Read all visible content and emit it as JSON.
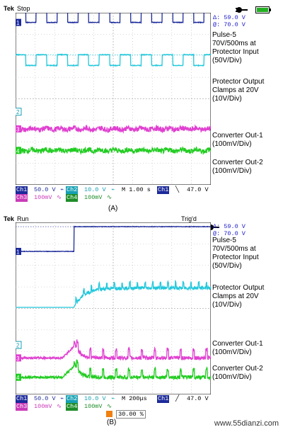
{
  "colors": {
    "ch1": "#1c2a9a",
    "ch2": "#22c8dc",
    "ch3": "#e040d0",
    "ch4": "#22cc22",
    "grid": "#b8b8b8"
  },
  "chart_data": [
    {
      "type": "line",
      "caption": "(A)",
      "status": "Stop",
      "readout": {
        "delta": "Δ:  59.0 V",
        "at": "@:  70.0 V"
      },
      "trigger_readout": "",
      "timebase": "M 1.00 s",
      "trigger": {
        "source": "Ch1",
        "slope": "╲",
        "level": "47.0 V"
      },
      "position_percent": "",
      "channels": [
        {
          "label": "Ch1",
          "scale": "50.0 V",
          "coupling": "⌁"
        },
        {
          "label": "Ch2",
          "scale": "10.0 V",
          "coupling": "⌁"
        },
        {
          "label": "Ch3",
          "scale": "100mV",
          "coupling": "∿"
        },
        {
          "label": "Ch4",
          "scale": "100mV",
          "coupling": "∿"
        }
      ],
      "series": [
        {
          "name": "Pulse-5\n70V/500ms at\nProtector Input\n(50V/Div)",
          "marker": "1",
          "color": "#1c2a9a",
          "kind": "square",
          "low_div": 0.0,
          "high_div": 1.2,
          "offset_div": 3.55,
          "periods": 9.3,
          "duty": 0.5,
          "phase": 0.02
        },
        {
          "name": "Protector Output\nClamps at 20V\n(10V/Div)",
          "marker": "",
          "color": "#22c8dc",
          "kind": "square",
          "low_div": 0.0,
          "high_div": 0.5,
          "offset_div": 1.55,
          "periods": 9.3,
          "duty": 0.5,
          "phase": 0.02
        },
        {
          "name": "Converter Out-1\n(100mV/Div)",
          "marker": "3",
          "color": "#e040d0",
          "kind": "noise",
          "offset_div": -1.4,
          "amp_div": 0.12
        },
        {
          "name": "Converter Out-2\n(100mV/Div)",
          "marker": "4",
          "color": "#22cc22",
          "kind": "noise",
          "offset_div": -2.4,
          "amp_div": 0.12
        }
      ],
      "extra_markers": [
        {
          "label": "2",
          "div": -0.6
        }
      ]
    },
    {
      "type": "line",
      "caption": "(B)",
      "status": "Run",
      "readout": {
        "delta": "Δ:  59.0 V",
        "at": "@:  70.0 V"
      },
      "trigger_readout": "Trig'd",
      "timebase": "M 200μs",
      "trigger": {
        "source": "Ch1",
        "slope": "╱",
        "level": "47.0 V"
      },
      "position_percent": "30.00 %",
      "channels": [
        {
          "label": "Ch1",
          "scale": "50.0 V",
          "coupling": "⌁"
        },
        {
          "label": "Ch2",
          "scale": "10.0 V",
          "coupling": "⌁"
        },
        {
          "label": "Ch3",
          "scale": "100mV",
          "coupling": "∿"
        },
        {
          "label": "Ch4",
          "scale": "100mV",
          "coupling": "∿"
        }
      ],
      "series": [
        {
          "name": "Pulse-5\n70V/500ms at\nProtector Input\n(50V/Div)",
          "marker": "1",
          "color": "#1c2a9a",
          "kind": "step",
          "low_div": 0.0,
          "high_div": 1.15,
          "offset_div": 2.65,
          "step_at": 0.3
        },
        {
          "name": "Protector Output\nClamps at 20V\n(10V/Div)",
          "marker": "",
          "color": "#22c8dc",
          "kind": "clamp",
          "low_div": 0.0,
          "high_div": 0.9,
          "offset_div": 0.05,
          "step_at": 0.3
        },
        {
          "name": "Converter Out-1\n(100mV/Div)",
          "marker": "3",
          "color": "#e040d0",
          "kind": "transient",
          "offset_div": -2.3,
          "amp_div": 0.85,
          "step_at": 0.3
        },
        {
          "name": "Converter Out-2\n(100mV/Div)",
          "marker": "4",
          "color": "#22cc22",
          "kind": "transient",
          "offset_div": -3.2,
          "amp_div": 0.8,
          "step_at": 0.3
        }
      ],
      "extra_markers": [
        {
          "label": "2",
          "div": -1.7
        }
      ]
    }
  ],
  "watermark": "www.55dianzi.com"
}
